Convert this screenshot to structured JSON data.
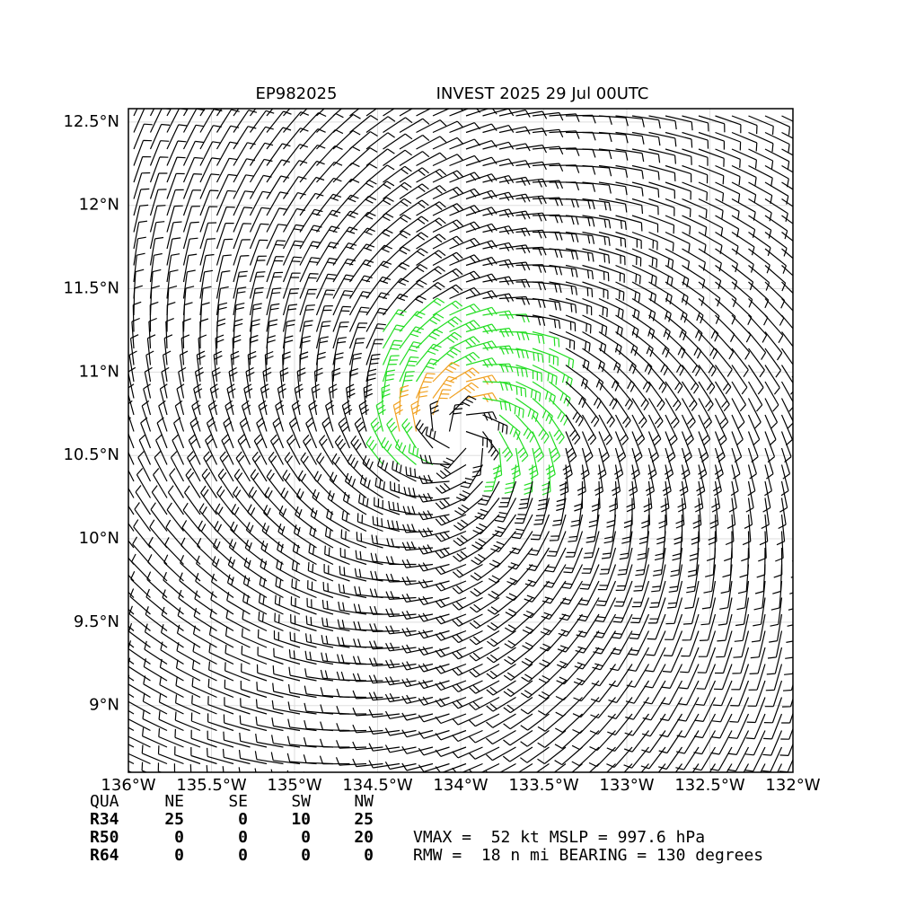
{
  "title_left": "EP982025",
  "title_right": "INVEST 2025 29 Jul 00UTC",
  "map": {
    "xlim": [
      -136,
      -132
    ],
    "ylim": [
      8.6,
      12.58
    ],
    "xticks": [
      {
        "value": -136,
        "label": "136°W"
      },
      {
        "value": -135.5,
        "label": "135.5°W"
      },
      {
        "value": -135,
        "label": "135°W"
      },
      {
        "value": -134.5,
        "label": "134.5°W"
      },
      {
        "value": -134,
        "label": "134°W"
      },
      {
        "value": -133.5,
        "label": "133.5°W"
      },
      {
        "value": -133,
        "label": "133°W"
      },
      {
        "value": -132.5,
        "label": "132.5°W"
      },
      {
        "value": -132,
        "label": "132°W"
      }
    ],
    "yticks": [
      {
        "value": 9,
        "label": "9°N"
      },
      {
        "value": 9.5,
        "label": "9.5°N"
      },
      {
        "value": 10,
        "label": "10°N"
      },
      {
        "value": 10.5,
        "label": "10.5°N"
      },
      {
        "value": 11,
        "label": "11°N"
      },
      {
        "value": 11.5,
        "label": "11.5°N"
      },
      {
        "value": 12,
        "label": "12°N"
      },
      {
        "value": 12.5,
        "label": "12.5°N"
      }
    ]
  },
  "table": {
    "header": [
      "QUA",
      "NE",
      "SE",
      "SW",
      "NW"
    ],
    "rows": [
      [
        "R34",
        25,
        0,
        10,
        25
      ],
      [
        "R50",
        0,
        0,
        0,
        20
      ],
      [
        "R64",
        0,
        0,
        0,
        0
      ]
    ]
  },
  "stats": [
    "VMAX =  52 kt MSLP = 997.6 hPa",
    "RMW =  18 n mi BEARING = 130 degrees"
  ]
}
